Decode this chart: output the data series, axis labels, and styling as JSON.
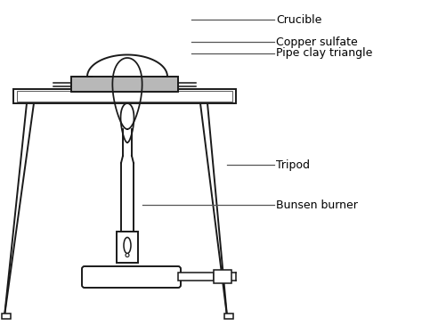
{
  "bg_color": "#ffffff",
  "line_color": "#1a1a1a",
  "gray_color": "#aaaaaa",
  "labels": {
    "crucible": "Crucible",
    "copper_sulfate": "Copper sulfate",
    "pipe_clay": "Pipe clay triangle",
    "tripod": "Tripod",
    "bunsen": "Bunsen burner"
  },
  "figsize": [
    4.74,
    3.75
  ],
  "dpi": 100
}
